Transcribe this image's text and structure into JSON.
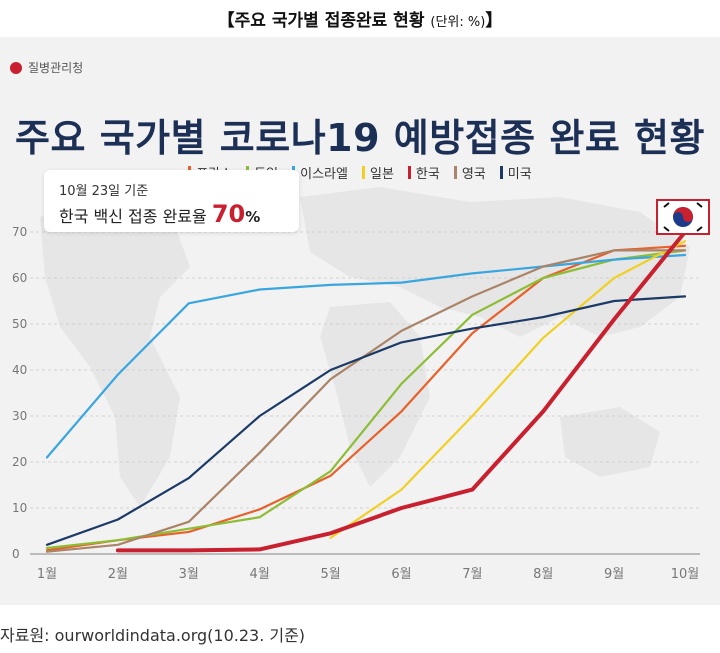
{
  "caption": {
    "title": "【주요 국가별 접종완료 현황",
    "unit": "(단위: %)",
    "close": "】"
  },
  "brand": {
    "name": "질병관리청"
  },
  "chart_title": "주요 국가별 코로나19 예방접종 완료 현황",
  "note": {
    "date": "10월 23일 기준",
    "text": "한국 백신 접종 완료율 ",
    "value": "70",
    "unit": "%"
  },
  "source": "자료원: ourworldindata.org(10.23. 기준)",
  "chart_data": {
    "type": "line",
    "categories": [
      "1월",
      "2월",
      "3월",
      "4월",
      "5월",
      "6월",
      "7월",
      "8월",
      "9월",
      "10월"
    ],
    "ylim": [
      0,
      70
    ],
    "yticks": [
      0,
      10,
      20,
      30,
      40,
      50,
      60,
      70
    ],
    "grid": true,
    "legend_position": "top-center",
    "series": [
      {
        "name": "프랑스",
        "color": "#e8602a",
        "values": [
          0.8,
          3,
          4.8,
          9.7,
          17,
          31,
          48,
          60,
          66,
          67
        ]
      },
      {
        "name": "독일",
        "color": "#8dbd35",
        "values": [
          1.3,
          3,
          5.5,
          8,
          18,
          37,
          52,
          60,
          64,
          66
        ]
      },
      {
        "name": "이스라엘",
        "color": "#39a6e0",
        "values": [
          21,
          39,
          54.5,
          57.5,
          58.5,
          59,
          61,
          62.5,
          64,
          65
        ]
      },
      {
        "name": "일본",
        "color": "#f0d022",
        "values": [
          null,
          null,
          null,
          null,
          3.5,
          14,
          30,
          47,
          60,
          68
        ]
      },
      {
        "name": "한국",
        "color": "#c8202f",
        "values": [
          null,
          0.8,
          0.8,
          1,
          4.5,
          10,
          14,
          31,
          51,
          70
        ]
      },
      {
        "name": "영국",
        "color": "#a98468",
        "values": [
          0.5,
          2,
          7,
          22,
          38,
          48.5,
          56,
          62.5,
          66,
          66
        ]
      },
      {
        "name": "미국",
        "color": "#1b3a66",
        "values": [
          2,
          7.5,
          16.5,
          30,
          40,
          46,
          49,
          51.5,
          55,
          56
        ]
      }
    ]
  }
}
